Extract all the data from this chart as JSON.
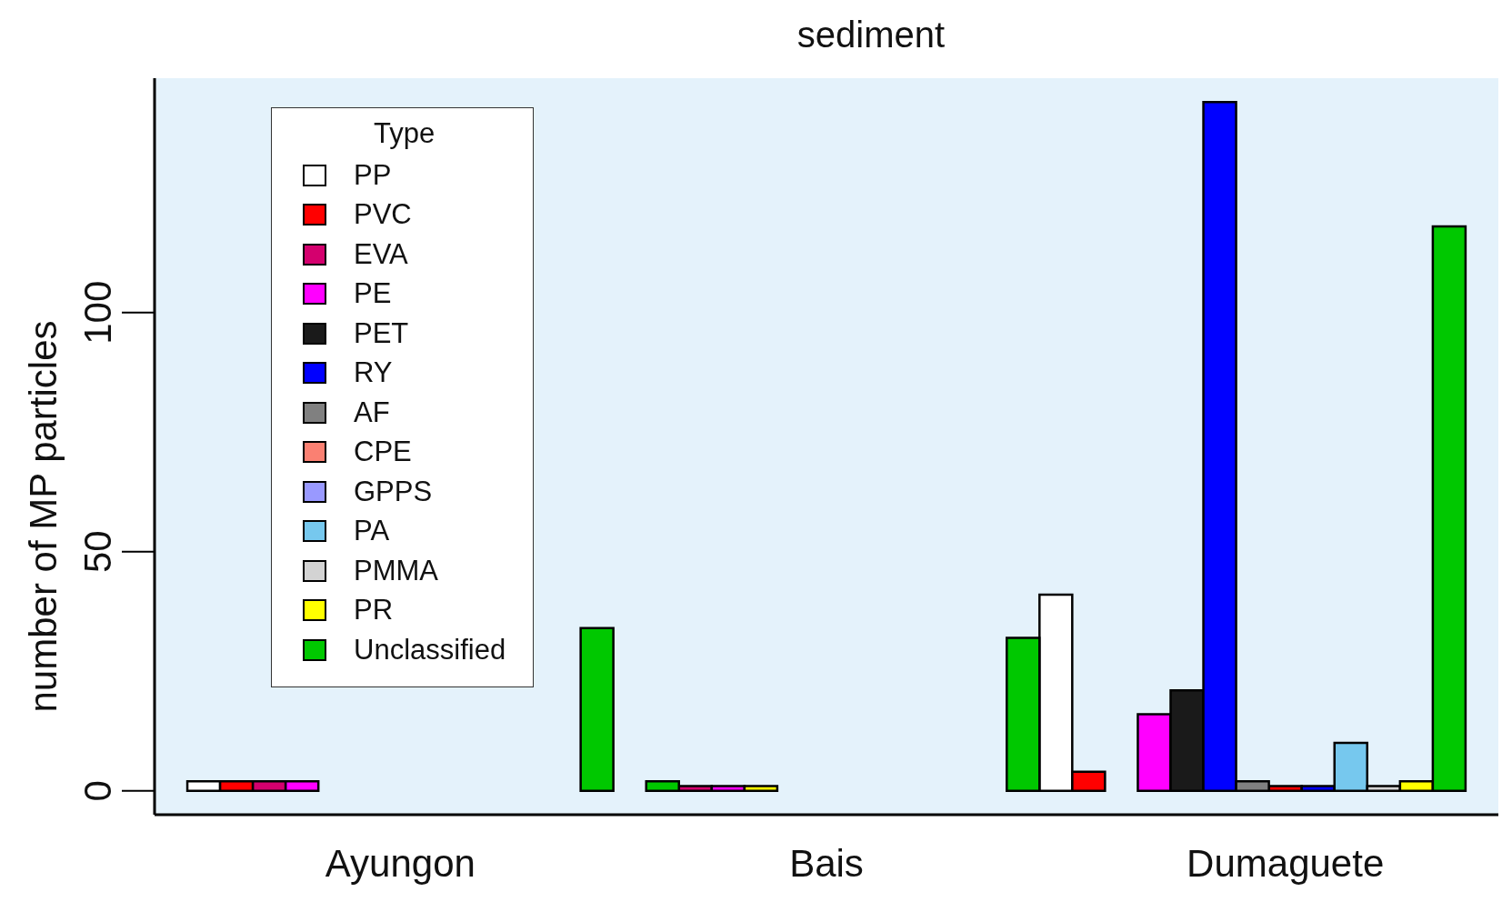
{
  "chart_data": {
    "type": "bar",
    "title": "sediment",
    "ylabel": "number of MP particles",
    "legend_title": "Type",
    "legend": "top left",
    "stacked": true,
    "grid": false,
    "categories": [
      null,
      null,
      null,
      null,
      null,
      null,
      null,
      "Ayungon",
      null,
      null,
      null,
      null,
      null,
      null,
      null,
      null,
      null,
      null,
      null,
      null,
      "Bais",
      null,
      null,
      null,
      null,
      null,
      null,
      null,
      null,
      null,
      null,
      null,
      null,
      null,
      "Dumaguete",
      null,
      null,
      null,
      null,
      null,
      null
    ],
    "ylim": [
      -5,
      149
    ],
    "yticks": [
      0,
      50,
      100
    ],
    "series": [
      {
        "name": "PP",
        "color": "#ffffff",
        "values": [
          null,
          2,
          null,
          null,
          null,
          null,
          null,
          null,
          null,
          null,
          null,
          null,
          null,
          null,
          null,
          null,
          null,
          null,
          null,
          null,
          null,
          null,
          null,
          null,
          null,
          null,
          null,
          41,
          null,
          null,
          null,
          null,
          null,
          null,
          null,
          null,
          null,
          null,
          null,
          null,
          null
        ]
      },
      {
        "name": "PVC",
        "color": "#ff0000",
        "values": [
          null,
          null,
          2,
          null,
          null,
          null,
          null,
          null,
          null,
          null,
          null,
          null,
          null,
          null,
          null,
          null,
          null,
          null,
          null,
          null,
          null,
          null,
          null,
          null,
          null,
          null,
          null,
          null,
          4,
          null,
          null,
          null,
          null,
          null,
          1,
          null,
          null,
          null,
          null,
          null,
          null
        ]
      },
      {
        "name": "EVA",
        "color": "#d4006e",
        "values": [
          null,
          null,
          null,
          2,
          null,
          null,
          null,
          null,
          null,
          null,
          null,
          null,
          null,
          null,
          null,
          null,
          1,
          null,
          null,
          null,
          null,
          null,
          null,
          null,
          null,
          null,
          null,
          null,
          null,
          null,
          null,
          null,
          null,
          null,
          null,
          null,
          null,
          null,
          null,
          null,
          null
        ]
      },
      {
        "name": "PE",
        "color": "#ff00ff",
        "values": [
          null,
          null,
          null,
          null,
          2,
          null,
          null,
          null,
          null,
          null,
          null,
          null,
          null,
          null,
          null,
          null,
          null,
          1,
          null,
          null,
          null,
          null,
          null,
          null,
          null,
          null,
          null,
          null,
          null,
          null,
          16,
          null,
          null,
          null,
          null,
          null,
          null,
          null,
          null,
          null,
          null
        ]
      },
      {
        "name": "PET",
        "color": "#1a1a1a",
        "values": [
          null,
          null,
          null,
          null,
          null,
          null,
          null,
          null,
          null,
          null,
          null,
          null,
          null,
          null,
          null,
          null,
          null,
          null,
          null,
          null,
          null,
          null,
          null,
          null,
          null,
          null,
          null,
          null,
          null,
          null,
          null,
          21,
          null,
          null,
          null,
          null,
          null,
          null,
          null,
          null,
          null
        ]
      },
      {
        "name": "RY",
        "color": "#0000ff",
        "values": [
          null,
          null,
          null,
          null,
          null,
          null,
          null,
          null,
          null,
          null,
          null,
          null,
          null,
          null,
          null,
          null,
          null,
          null,
          null,
          null,
          null,
          null,
          null,
          null,
          null,
          null,
          null,
          null,
          null,
          null,
          null,
          null,
          144,
          null,
          null,
          1,
          null,
          null,
          null,
          null,
          null
        ]
      },
      {
        "name": "AF",
        "color": "#808080",
        "values": [
          null,
          null,
          null,
          null,
          null,
          null,
          null,
          null,
          null,
          null,
          null,
          null,
          null,
          null,
          null,
          null,
          null,
          null,
          null,
          null,
          null,
          null,
          null,
          null,
          null,
          null,
          null,
          null,
          null,
          null,
          null,
          null,
          null,
          2,
          null,
          null,
          null,
          null,
          null,
          null,
          null
        ]
      },
      {
        "name": "CPE",
        "color": "#fa8072",
        "values": [
          null,
          null,
          null,
          null,
          null,
          null,
          null,
          null,
          null,
          null,
          null,
          null,
          null,
          null,
          null,
          null,
          null,
          null,
          null,
          null,
          null,
          null,
          null,
          null,
          null,
          null,
          null,
          null,
          null,
          null,
          null,
          null,
          null,
          null,
          null,
          null,
          null,
          null,
          null,
          null,
          null
        ]
      },
      {
        "name": "GPPS",
        "color": "#9999ff",
        "values": [
          null,
          null,
          null,
          null,
          null,
          null,
          null,
          null,
          null,
          null,
          null,
          null,
          null,
          null,
          null,
          null,
          null,
          null,
          null,
          null,
          null,
          null,
          null,
          null,
          null,
          null,
          null,
          null,
          null,
          null,
          null,
          null,
          null,
          null,
          null,
          null,
          null,
          null,
          null,
          null,
          null
        ]
      },
      {
        "name": "PA",
        "color": "#76c8ee",
        "values": [
          null,
          null,
          null,
          null,
          null,
          null,
          null,
          null,
          null,
          null,
          null,
          null,
          null,
          null,
          null,
          null,
          null,
          null,
          null,
          null,
          null,
          null,
          null,
          null,
          null,
          null,
          null,
          null,
          null,
          null,
          null,
          null,
          null,
          null,
          null,
          null,
          10,
          null,
          null,
          null,
          null
        ]
      },
      {
        "name": "PMMA",
        "color": "#d3d3d3",
        "values": [
          null,
          null,
          null,
          null,
          null,
          null,
          null,
          null,
          null,
          null,
          null,
          null,
          null,
          null,
          null,
          null,
          null,
          null,
          null,
          null,
          null,
          null,
          null,
          null,
          null,
          null,
          null,
          null,
          null,
          null,
          null,
          null,
          null,
          null,
          null,
          null,
          null,
          1,
          null,
          null,
          null
        ]
      },
      {
        "name": "PR",
        "color": "#ffff00",
        "values": [
          null,
          null,
          null,
          null,
          null,
          null,
          null,
          null,
          null,
          null,
          null,
          null,
          null,
          null,
          null,
          null,
          null,
          null,
          1,
          null,
          null,
          null,
          null,
          null,
          null,
          null,
          null,
          null,
          null,
          null,
          null,
          null,
          null,
          null,
          null,
          null,
          null,
          null,
          2,
          null,
          null
        ]
      },
      {
        "name": "Unclassified",
        "color": "#00c800",
        "values": [
          null,
          null,
          null,
          null,
          null,
          null,
          null,
          null,
          null,
          null,
          null,
          null,
          null,
          34,
          null,
          2,
          null,
          null,
          null,
          null,
          null,
          null,
          null,
          null,
          null,
          null,
          32,
          null,
          null,
          null,
          null,
          null,
          null,
          null,
          null,
          null,
          null,
          null,
          null,
          118,
          null
        ]
      }
    ]
  }
}
